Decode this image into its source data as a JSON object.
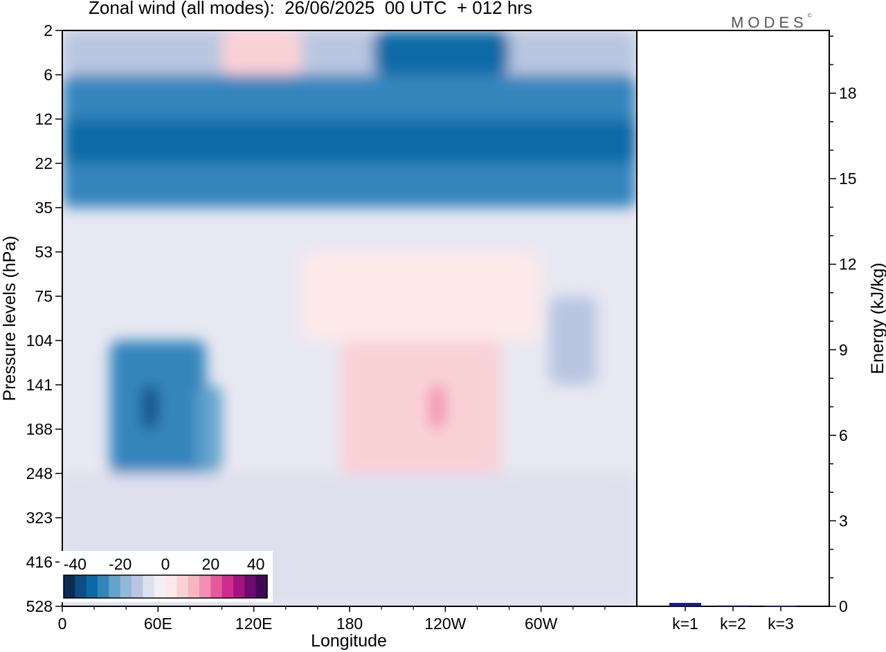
{
  "title": "Zonal wind (all modes):  26/06/2025  00 UTC  + 012 hrs",
  "brand": "MODES",
  "brand_mark": "©",
  "colors": {
    "negative": [
      "#0c2c52",
      "#0f4d82",
      "#0b6aa6",
      "#3485bd",
      "#64a3cc",
      "#93b8d7",
      "#b9c6e1",
      "#dfe0ee"
    ],
    "neutral": "#f4eef5",
    "positive": [
      "#fde9ea",
      "#f9d1d5",
      "#f6b5c1",
      "#f28eb1",
      "#e6599d",
      "#cf2b8e",
      "#a3127d",
      "#6c0a72",
      "#3f0a55"
    ],
    "bar": "#1a1a8c"
  },
  "chart_data": [
    {
      "type": "heatmap",
      "xlabel": "Longitude",
      "ylabel": "Pressure levels (hPa)",
      "x_ticks": [
        "0",
        "60E",
        "120E",
        "180",
        "120W",
        "60W"
      ],
      "x_tick_values": [
        0,
        60,
        120,
        180,
        240,
        300
      ],
      "xlim": [
        0,
        360
      ],
      "y_ticks": [
        2,
        6,
        12,
        22,
        35,
        53,
        75,
        104,
        141,
        188,
        248,
        323,
        416,
        528
      ],
      "colorbar": {
        "ticks": [
          "-40",
          "-20",
          "0",
          "20",
          "40"
        ],
        "tick_values": [
          -40,
          -20,
          0,
          20,
          40
        ],
        "range": [
          -45,
          45
        ]
      },
      "features": [
        {
          "lon_range": [
            0,
            360
          ],
          "levels": [
            6,
            35
          ],
          "value": -25
        },
        {
          "lon_range": [
            0,
            360
          ],
          "levels": [
            2,
            6
          ],
          "value": -10
        },
        {
          "lon_range": [
            195,
            280
          ],
          "levels": [
            2,
            6
          ],
          "value": -30
        },
        {
          "lon_range": [
            100,
            150
          ],
          "levels": [
            2,
            6
          ],
          "value": 8
        },
        {
          "lon_range": [
            0,
            360
          ],
          "levels": [
            12,
            22
          ],
          "value": -32
        },
        {
          "lon_range": [
            30,
            90
          ],
          "levels": [
            104,
            323
          ],
          "value": -25
        },
        {
          "lon_range": [
            50,
            60
          ],
          "levels": [
            141,
            188
          ],
          "value": -35
        },
        {
          "lon_range": [
            85,
            100
          ],
          "levels": [
            141,
            248
          ],
          "value": -20
        },
        {
          "lon_range": [
            150,
            300
          ],
          "levels": [
            53,
            104
          ],
          "value": 5
        },
        {
          "lon_range": [
            175,
            275
          ],
          "levels": [
            104,
            323
          ],
          "value": 12
        },
        {
          "lon_range": [
            230,
            240
          ],
          "levels": [
            141,
            188
          ],
          "value": 18
        },
        {
          "lon_range": [
            305,
            335
          ],
          "levels": [
            75,
            141
          ],
          "value": -10
        },
        {
          "lon_range": [
            0,
            360
          ],
          "levels": [
            248,
            528
          ],
          "value": -4
        }
      ]
    },
    {
      "type": "bar",
      "categories": [
        "k=1",
        "k=2",
        "k=3"
      ],
      "values": [
        0.12,
        0.03,
        0.02
      ],
      "ylabel": "Energy (kJ/kg)",
      "ylim": [
        0,
        20.2
      ],
      "y_ticks": [
        0,
        3,
        6,
        9,
        12,
        15,
        18
      ]
    }
  ]
}
